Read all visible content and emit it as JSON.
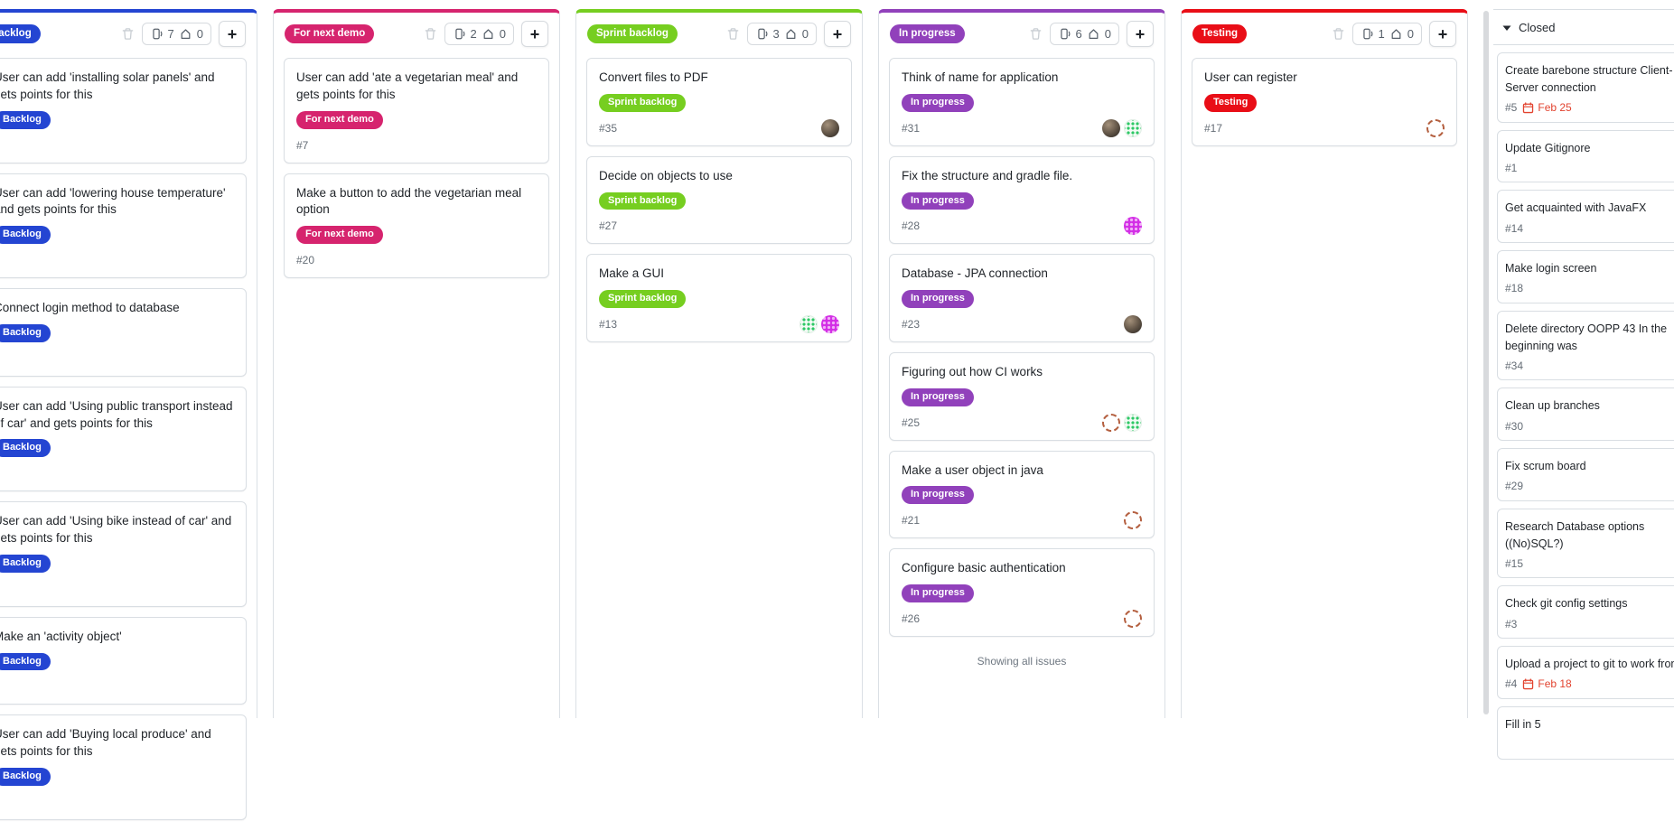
{
  "ui": {
    "add_button_label": "+",
    "icons": {
      "trash": "trash-icon",
      "card_counter": "card-count-icon",
      "milestone_counter": "milestone-icon",
      "add": "plus-icon",
      "collapse": "chevron-down-icon",
      "calendar": "calendar-icon"
    },
    "colors": {
      "due_date": "#e2432f",
      "counter_text": "#57606a",
      "card_border": "#d9dee3"
    }
  },
  "board": {
    "columns": [
      {
        "name": "Backlog",
        "color": "#2445d2",
        "cards_count": "7",
        "milestone_count": "0",
        "cards": [
          {
            "title": "User can add 'installing solar panels' and gets points for this",
            "label": "Backlog",
            "number": ""
          },
          {
            "title": "User can add 'lowering house temperature' and gets points for this",
            "label": "Backlog",
            "number": ""
          },
          {
            "title": "Connect login method to database",
            "label": "Backlog",
            "number": ""
          },
          {
            "title": "User can add 'Using public transport instead of car' and gets points for this",
            "label": "Backlog",
            "number": ""
          },
          {
            "title": "User can add 'Using bike instead of car' and gets points for this",
            "label": "Backlog",
            "number": ""
          },
          {
            "title": "Make an 'activity object'",
            "label": "Backlog",
            "number": ""
          },
          {
            "title": "User can add 'Buying local produce' and gets points for this",
            "label": "Backlog",
            "number": ""
          }
        ]
      },
      {
        "name": "For next demo",
        "color": "#d6246e",
        "cards_count": "2",
        "milestone_count": "0",
        "cards": [
          {
            "title": "User can add 'ate a vegetarian meal' and gets points for this",
            "label": "For next demo",
            "number": "#7"
          },
          {
            "title": "Make a button to add the vegetarian meal option",
            "label": "For next demo",
            "number": "#20"
          }
        ]
      },
      {
        "name": "Sprint backlog",
        "color": "#76ce20",
        "cards_count": "3",
        "milestone_count": "0",
        "cards": [
          {
            "title": "Convert files to PDF",
            "label": "Sprint backlog",
            "number": "#35",
            "avatars": [
              "photo"
            ]
          },
          {
            "title": "Decide on objects to use",
            "label": "Sprint backlog",
            "number": "#27"
          },
          {
            "title": "Make a GUI",
            "label": "Sprint backlog",
            "number": "#13",
            "avatars": [
              "identicon-green",
              "identicon-magenta"
            ]
          }
        ]
      },
      {
        "name": "In progress",
        "color": "#9141bb",
        "cards_count": "6",
        "milestone_count": "0",
        "footer": "Showing all issues",
        "cards": [
          {
            "title": "Think of name for application",
            "label": "In progress",
            "number": "#31",
            "avatars": [
              "photo",
              "identicon-green"
            ]
          },
          {
            "title": "Fix the structure and gradle file.",
            "label": "In progress",
            "number": "#28",
            "avatars": [
              "identicon-magenta"
            ]
          },
          {
            "title": "Database - JPA connection",
            "label": "In progress",
            "number": "#23",
            "avatars": [
              "photo"
            ]
          },
          {
            "title": "Figuring out how CI works",
            "label": "In progress",
            "number": "#25",
            "avatars": [
              "ring-orange",
              "identicon-green"
            ]
          },
          {
            "title": "Make a user object in java",
            "label": "In progress",
            "number": "#21",
            "avatars": [
              "ring-orange"
            ]
          },
          {
            "title": "Configure basic authentication",
            "label": "In progress",
            "number": "#26",
            "avatars": [
              "ring-orange"
            ]
          }
        ]
      },
      {
        "name": "Testing",
        "color": "#e90e17",
        "cards_count": "1",
        "milestone_count": "0",
        "cards": [
          {
            "title": "User can register",
            "label": "Testing",
            "number": "#17",
            "avatars": [
              "ring-orange"
            ]
          }
        ]
      }
    ],
    "closed": {
      "title": "Closed",
      "cards": [
        {
          "title": "Create barebone structure Client-Server connection",
          "number": "#5",
          "due": "Feb 25"
        },
        {
          "title": "Update Gitignore",
          "number": "#1"
        },
        {
          "title": "Get acquainted with JavaFX",
          "number": "#14"
        },
        {
          "title": "Make login screen",
          "number": "#18"
        },
        {
          "title": "Delete directory OOPP 43 In the beginning was",
          "number": "#34"
        },
        {
          "title": "Clean up branches",
          "number": "#30"
        },
        {
          "title": "Fix scrum board",
          "number": "#29"
        },
        {
          "title": "Research Database options ((No)SQL?)",
          "number": "#15"
        },
        {
          "title": "Check git config settings",
          "number": "#3"
        },
        {
          "title": "Upload a project to git to work from",
          "number": "#4",
          "due": "Feb 18"
        },
        {
          "title": "Fill in 5",
          "number": ""
        }
      ]
    }
  }
}
